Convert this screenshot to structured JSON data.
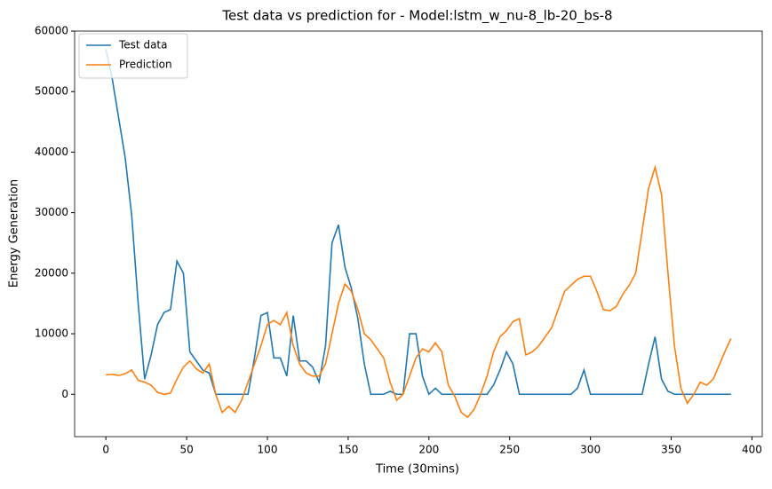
{
  "chart_data": {
    "type": "line",
    "title": "Test data vs prediction for - Model:lstm_w_nu-8_lb-20_bs-8",
    "x_label": "Time (30mins)",
    "y_label": "Energy Generation",
    "x": [
      0,
      4,
      8,
      12,
      16,
      20,
      24,
      28,
      32,
      36,
      40,
      44,
      48,
      52,
      56,
      60,
      64,
      68,
      72,
      76,
      80,
      84,
      88,
      92,
      96,
      100,
      104,
      108,
      112,
      116,
      120,
      124,
      128,
      132,
      136,
      140,
      144,
      148,
      152,
      156,
      160,
      164,
      168,
      172,
      176,
      180,
      184,
      188,
      192,
      196,
      200,
      204,
      208,
      212,
      216,
      220,
      224,
      228,
      232,
      236,
      240,
      244,
      248,
      252,
      256,
      260,
      264,
      268,
      272,
      276,
      280,
      284,
      288,
      292,
      296,
      300,
      304,
      308,
      312,
      316,
      320,
      324,
      328,
      332,
      336,
      340,
      344,
      348,
      352,
      356,
      360,
      364,
      368,
      372,
      376,
      380,
      384,
      387
    ],
    "series": [
      {
        "name": "Test data",
        "color": "#1f77b4",
        "values": [
          57000,
          52000,
          45500,
          39000,
          29500,
          15000,
          2500,
          6500,
          11500,
          13500,
          14000,
          22000,
          20000,
          7000,
          5500,
          4000,
          3500,
          0,
          0,
          0,
          0,
          0,
          0,
          6000,
          13000,
          13500,
          6000,
          6000,
          3000,
          13000,
          5500,
          5500,
          4500,
          2000,
          8000,
          25000,
          28000,
          21000,
          17500,
          12500,
          5000,
          0,
          0,
          0,
          500,
          0,
          0,
          10000,
          10000,
          3000,
          0,
          1000,
          0,
          0,
          0,
          0,
          0,
          0,
          0,
          0,
          1500,
          4000,
          7000,
          5000,
          0,
          0,
          0,
          0,
          0,
          0,
          0,
          0,
          0,
          1000,
          4000,
          0,
          0,
          0,
          0,
          0,
          0,
          0,
          0,
          0,
          5000,
          9500,
          2500,
          500,
          0,
          0,
          0,
          0,
          0,
          0,
          0,
          0,
          0,
          0
        ]
      },
      {
        "name": "Prediction",
        "color": "#ff7f0e",
        "values": [
          3200,
          3300,
          3100,
          3400,
          4000,
          2300,
          2000,
          1500,
          300,
          0,
          200,
          2500,
          4500,
          5500,
          4200,
          3500,
          5000,
          0,
          -3000,
          -2000,
          -3000,
          -1000,
          2000,
          5000,
          8000,
          11500,
          12200,
          11500,
          13500,
          8000,
          5000,
          3500,
          3000,
          3000,
          5000,
          10000,
          15000,
          18200,
          17000,
          14000,
          10000,
          9000,
          7500,
          6000,
          2000,
          -1000,
          0,
          3000,
          6000,
          7500,
          7000,
          8500,
          7000,
          1500,
          -300,
          -3000,
          -3800,
          -2500,
          0,
          3000,
          7000,
          9500,
          10500,
          12000,
          12500,
          6500,
          7000,
          8000,
          9500,
          11000,
          14000,
          17000,
          18000,
          19000,
          19500,
          19500,
          17000,
          14000,
          13800,
          14500,
          16500,
          18000,
          20000,
          27000,
          34000,
          37500,
          33000,
          20000,
          8000,
          1000,
          -1500,
          0,
          2000,
          1500,
          2500,
          5000,
          7500,
          9200
        ]
      }
    ],
    "xlim": [
      -19.35,
      406.35
    ],
    "xticks": [
      0,
      50,
      100,
      150,
      200,
      250,
      300,
      350,
      400
    ],
    "ylim": [
      -7000,
      60000
    ],
    "yticks": [
      0,
      10000,
      20000,
      30000,
      40000,
      50000,
      60000
    ],
    "grid": false,
    "legend": "upper-left"
  }
}
